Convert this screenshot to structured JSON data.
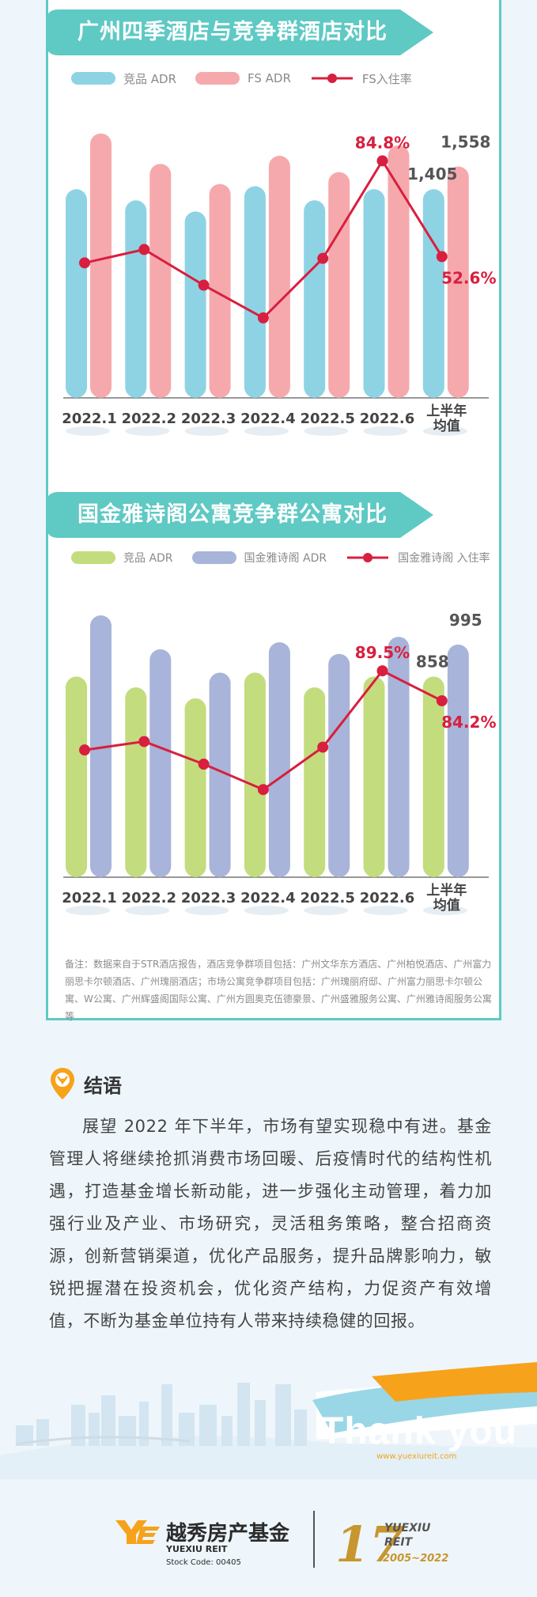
{
  "charts": [
    {
      "title": "广州四季酒店与竞争群酒店对比",
      "legend": [
        "竞品 ADR",
        "FS ADR",
        "FS入住率"
      ],
      "categories": [
        "2022.1",
        "2022.2",
        "2022.3",
        "2022.4",
        "2022.5",
        "2022.6",
        "上半年\n均值"
      ],
      "label_adr_comp": "1,405",
      "label_adr_own": "1,558",
      "label_occ_peak": "84.8%",
      "label_occ_avg": "52.6%",
      "colors": {
        "comp": "#8ed3e4",
        "own": "#f6a9ad",
        "line": "#d81f3f"
      }
    },
    {
      "title": "国金雅诗阁公寓竞争群公寓对比",
      "legend": [
        "竞品 ADR",
        "国金雅诗阁 ADR",
        "国金雅诗阁 入住率"
      ],
      "categories": [
        "2022.1",
        "2022.2",
        "2022.3",
        "2022.4",
        "2022.5",
        "2022.6",
        "上半年\n均值"
      ],
      "label_adr_comp": "858",
      "label_adr_own": "995",
      "label_occ_peak": "89.5%",
      "label_occ_avg": "84.2%",
      "colors": {
        "comp": "#c3dc7e",
        "own": "#a8b4d9",
        "line": "#d81f3f"
      }
    }
  ],
  "chart_data": [
    {
      "type": "bar",
      "title": "广州四季酒店与竞争群酒店对比",
      "categories": [
        "2022.1",
        "2022.2",
        "2022.3",
        "2022.4",
        "2022.5",
        "2022.6",
        "上半年均值"
      ],
      "series": [
        {
          "name": "竞品 ADR",
          "type": "bar",
          "values": [
            1405,
            1330,
            1255,
            1425,
            1330,
            1405,
            1405
          ]
        },
        {
          "name": "FS ADR",
          "type": "bar",
          "values": [
            1780,
            1575,
            1440,
            1630,
            1520,
            1700,
            1558
          ]
        },
        {
          "name": "FS入住率",
          "type": "line",
          "unit": "%",
          "values": [
            50.5,
            55,
            43,
            32,
            52,
            84.8,
            52.6
          ]
        }
      ],
      "ylim": [
        0,
        1800
      ],
      "legend_position": "top-left",
      "grid": false
    },
    {
      "type": "bar",
      "title": "国金雅诗阁公寓竞争群公寓对比",
      "categories": [
        "2022.1",
        "2022.2",
        "2022.3",
        "2022.4",
        "2022.5",
        "2022.6",
        "上半年均值"
      ],
      "series": [
        {
          "name": "竞品 ADR",
          "type": "bar",
          "values": [
            858,
            812,
            765,
            875,
            812,
            858,
            858
          ]
        },
        {
          "name": "国金雅诗阁 ADR",
          "type": "bar",
          "values": [
            1120,
            975,
            875,
            1005,
            955,
            1028,
            995
          ]
        },
        {
          "name": "国金雅诗阁 入住率",
          "type": "line",
          "unit": "%",
          "values": [
            75.5,
            77,
            73,
            68.5,
            76,
            89.5,
            84.2
          ]
        }
      ],
      "ylim": [
        0,
        1130
      ],
      "legend_position": "top-left",
      "grid": false
    }
  ],
  "note": "备注：数据来自于STR酒店报告，酒店竞争群项目包括：广州文华东方酒店、广州柏悦酒店、广州富力丽思卡尔顿酒店、广州瑰丽酒店；市场公寓竞争群项目包括：广州瑰丽府邸、广州富力丽思卡尔顿公寓、W公寓、广州辉盛阁国际公寓、广州方圆奥克伍德豪景、广州盛雅服务公寓、广州雅诗阁服务公寓等",
  "conclusion": {
    "title": "结语",
    "body": "展望 2022 年下半年，市场有望实现稳中有进。基金管理人将继续抢抓消费市场回暖、后疫情时代的结构性机遇，打造基金增长新动能，进一步强化主动管理，着力加强行业及产业、市场研究，灵活租务策略，整合招商资源，创新营销渠道，优化产品服务，提升品牌影响力，敏锐把握潜在投资机会，优化资产结构，力促资产有效增值，不断为基金单位持有人带来持续稳健的回报。"
  },
  "footer": {
    "thank_you": "Thank you",
    "url": "www.yuexiureit.com",
    "logo_cn": "越秀房产基金",
    "logo_en": "YUEXIU REIT",
    "stock_code": "Stock Code: 00405",
    "anniv_number": "17",
    "anniv_en1": "YUEXIU",
    "anniv_en2": "REIT",
    "anniv_years": "2005~2022",
    "colors": {
      "gold": "#c8962e",
      "orange": "#f7a21b"
    }
  }
}
